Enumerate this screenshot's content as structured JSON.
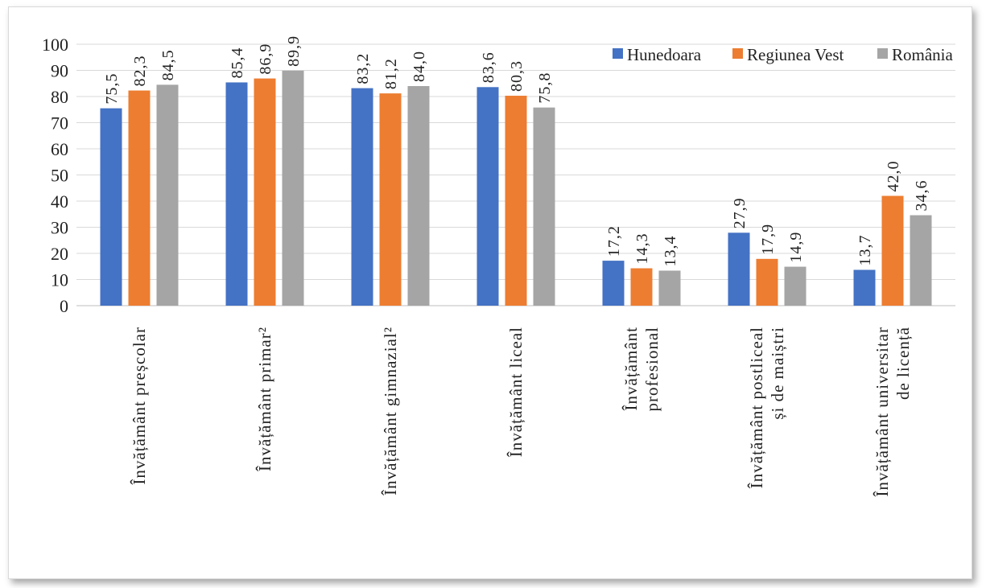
{
  "chart_data": {
    "type": "bar",
    "title": "",
    "xlabel": "",
    "ylabel": "",
    "ylim": [
      0,
      100
    ],
    "yticks": [
      0,
      10,
      20,
      30,
      40,
      50,
      60,
      70,
      80,
      90,
      100
    ],
    "grid": true,
    "legend_position": "top-right",
    "categories": [
      [
        "Învățământ preșcolar"
      ],
      [
        "Învățământ primar²"
      ],
      [
        "Învățământ gimnazial²"
      ],
      [
        "Învățământ liceal"
      ],
      [
        "Învățământ",
        "profesional"
      ],
      [
        "Învățământ postliceal",
        "și de maiștri"
      ],
      [
        "Învățământ universitar",
        "de licență"
      ]
    ],
    "series": [
      {
        "name": "Hunedoara",
        "color": "#4472c4",
        "values": [
          75.5,
          85.4,
          83.2,
          83.6,
          17.2,
          27.9,
          13.7
        ],
        "labels": [
          "75,5",
          "85,4",
          "83,2",
          "83,6",
          "17,2",
          "27,9",
          "13,7"
        ]
      },
      {
        "name": "Regiunea Vest",
        "color": "#ed7d31",
        "values": [
          82.3,
          86.9,
          81.2,
          80.3,
          14.3,
          17.9,
          42.0
        ],
        "labels": [
          "82,3",
          "86,9",
          "81,2",
          "80,3",
          "14,3",
          "17,9",
          "42,0"
        ]
      },
      {
        "name": "România",
        "color": "#a5a5a5",
        "values": [
          84.5,
          89.9,
          84.0,
          75.8,
          13.4,
          14.9,
          34.6
        ],
        "labels": [
          "84,5",
          "89,9",
          "84,0",
          "75,8",
          "13,4",
          "14,9",
          "34,6"
        ]
      }
    ]
  }
}
